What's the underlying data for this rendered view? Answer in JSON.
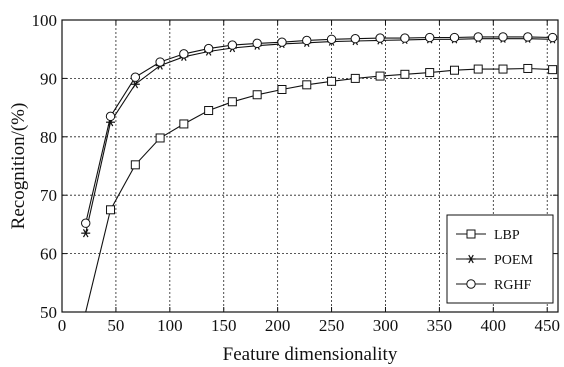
{
  "chart_data": {
    "type": "line",
    "xlabel": "Feature dimensionality",
    "ylabel": "Recognition/(%)",
    "xlim": [
      0,
      460
    ],
    "ylim": [
      50,
      100
    ],
    "xticks": [
      0,
      50,
      100,
      150,
      200,
      250,
      300,
      350,
      400,
      450
    ],
    "yticks": [
      50,
      60,
      70,
      80,
      90,
      100
    ],
    "grid": true,
    "legend_position": "bottom-right",
    "series": [
      {
        "name": "LBP",
        "marker": "square",
        "x": [
          22,
          45,
          68,
          91,
          113,
          136,
          158,
          181,
          204,
          227,
          250,
          272,
          295,
          318,
          341,
          364,
          386,
          409,
          432,
          455
        ],
        "y": [
          50.0,
          67.5,
          75.2,
          79.8,
          82.2,
          84.5,
          86.0,
          87.2,
          88.1,
          88.9,
          89.5,
          90.0,
          90.4,
          90.7,
          91.0,
          91.4,
          91.6,
          91.6,
          91.7,
          91.5
        ]
      },
      {
        "name": "POEM",
        "marker": "star",
        "x": [
          22,
          45,
          68,
          91,
          113,
          136,
          158,
          181,
          204,
          227,
          250,
          272,
          295,
          318,
          341,
          364,
          386,
          409,
          432,
          455
        ],
        "y": [
          63.5,
          82.5,
          89.0,
          92.2,
          93.7,
          94.6,
          95.2,
          95.6,
          95.9,
          96.1,
          96.3,
          96.4,
          96.5,
          96.6,
          96.7,
          96.7,
          96.8,
          96.8,
          96.8,
          96.7
        ]
      },
      {
        "name": "RGHF",
        "marker": "circle",
        "x": [
          22,
          45,
          68,
          91,
          113,
          136,
          158,
          181,
          204,
          227,
          250,
          272,
          295,
          318,
          341,
          364,
          386,
          409,
          432,
          455
        ],
        "y": [
          65.2,
          83.5,
          90.2,
          92.8,
          94.2,
          95.1,
          95.7,
          96.0,
          96.2,
          96.5,
          96.7,
          96.8,
          96.9,
          96.9,
          97.0,
          97.0,
          97.1,
          97.1,
          97.1,
          97.0
        ]
      }
    ]
  }
}
